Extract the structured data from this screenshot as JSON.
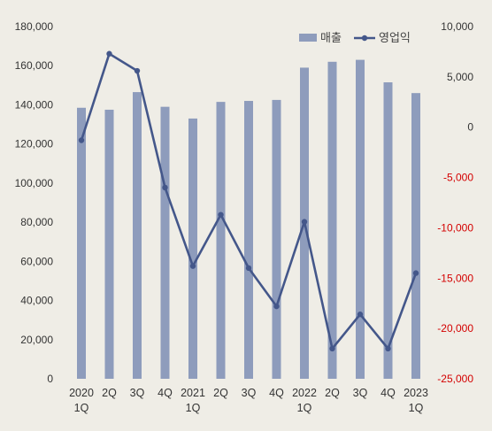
{
  "chart_data": {
    "type": "bar+line",
    "categories": [
      [
        "2020",
        "1Q"
      ],
      [
        "2Q"
      ],
      [
        "3Q"
      ],
      [
        "4Q"
      ],
      [
        "2021",
        "1Q"
      ],
      [
        "2Q"
      ],
      [
        "3Q"
      ],
      [
        "4Q"
      ],
      [
        "2022",
        "1Q"
      ],
      [
        "2Q"
      ],
      [
        "3Q"
      ],
      [
        "4Q"
      ],
      [
        "2023",
        "1Q"
      ]
    ],
    "series": [
      {
        "name": "매출",
        "kind": "bar",
        "axis": "left",
        "color": "#8e9cbc",
        "values": [
          138500,
          137500,
          146500,
          139000,
          133000,
          141500,
          142000,
          142500,
          159000,
          162000,
          163000,
          151500,
          146000
        ]
      },
      {
        "name": "영업익",
        "kind": "line",
        "axis": "right",
        "color": "#44578a",
        "values": [
          -1300,
          7300,
          5600,
          -6000,
          -13800,
          -8700,
          -14000,
          -17800,
          -9400,
          -22000,
          -18600,
          -22000,
          -14500
        ]
      }
    ],
    "y_left": {
      "ylim": [
        0,
        180000
      ],
      "ticks": [
        "0",
        "20,000",
        "40,000",
        "60,000",
        "80,000",
        "100,000",
        "120,000",
        "140,000",
        "160,000",
        "180,000"
      ],
      "tick_values": [
        0,
        20000,
        40000,
        60000,
        80000,
        100000,
        120000,
        140000,
        160000,
        180000
      ]
    },
    "y_right": {
      "ylim": [
        -25000,
        10000
      ],
      "ticks": [
        "-25,000",
        "-20,000",
        "-15,000",
        "-10,000",
        "-5,000",
        "0",
        "5,000",
        "10,000"
      ],
      "tick_values": [
        -25000,
        -20000,
        -15000,
        -10000,
        -5000,
        0,
        5000,
        10000
      ],
      "negative_color": "#d40000"
    },
    "legend": {
      "position": "top-right",
      "items": [
        "매출",
        "영업익"
      ]
    },
    "grid": false
  }
}
